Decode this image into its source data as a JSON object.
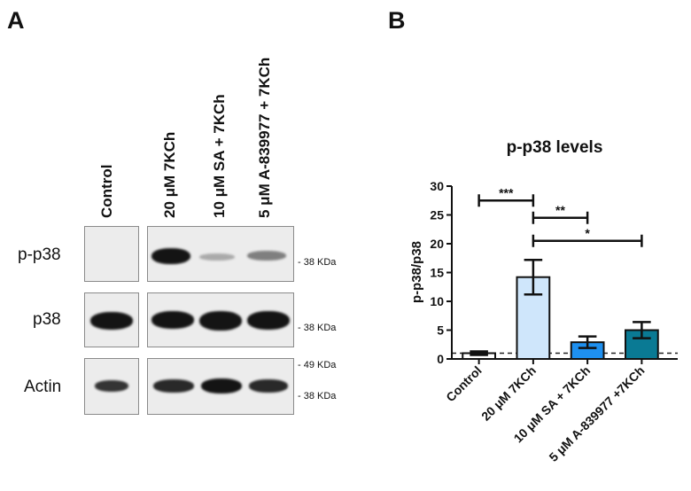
{
  "panel_a": {
    "letter": "A",
    "lanes": [
      "Control",
      "20 μM 7KCh",
      "10 μM SA + 7KCh",
      "5 μM A-839977 + 7KCh"
    ],
    "rows": [
      "p-p38",
      "p38",
      "Actin"
    ],
    "markers": {
      "pp38": "- 38 KDa",
      "p38": "- 38 KDa",
      "actin_upper": "- 49 KDa",
      "actin_lower": "- 38 KDa"
    },
    "band_intensity": {
      "p-p38": [
        0.0,
        1.0,
        0.22,
        0.4
      ],
      "p38": [
        1.0,
        1.0,
        1.0,
        1.0
      ],
      "Actin": [
        0.7,
        0.85,
        0.95,
        0.85
      ]
    }
  },
  "panel_b": {
    "letter": "B"
  },
  "chart_data": {
    "type": "bar",
    "title": "p-p38 levels",
    "ylabel": "p-p38/p38",
    "xlabel": "",
    "categories": [
      "Control",
      "20 μM 7KCh",
      "10 μM SA + 7KCh",
      "5 μM A-839977 +7KCh"
    ],
    "values": [
      1.0,
      14.2,
      2.9,
      5.0
    ],
    "errors": [
      0.3,
      3.0,
      1.0,
      1.4
    ],
    "colors": [
      "#ffffff",
      "#cfe6fb",
      "#1e90f0",
      "#0a7a94"
    ],
    "ylim": [
      0,
      30
    ],
    "yticks": [
      0,
      5,
      10,
      15,
      20,
      25,
      30
    ],
    "reference_line": 1.0,
    "significance": [
      {
        "from": 0,
        "to": 1,
        "label": "***",
        "y": 27.5
      },
      {
        "from": 1,
        "to": 2,
        "label": "**",
        "y": 24.5
      },
      {
        "from": 1,
        "to": 3,
        "label": "*",
        "y": 20.5
      }
    ]
  }
}
